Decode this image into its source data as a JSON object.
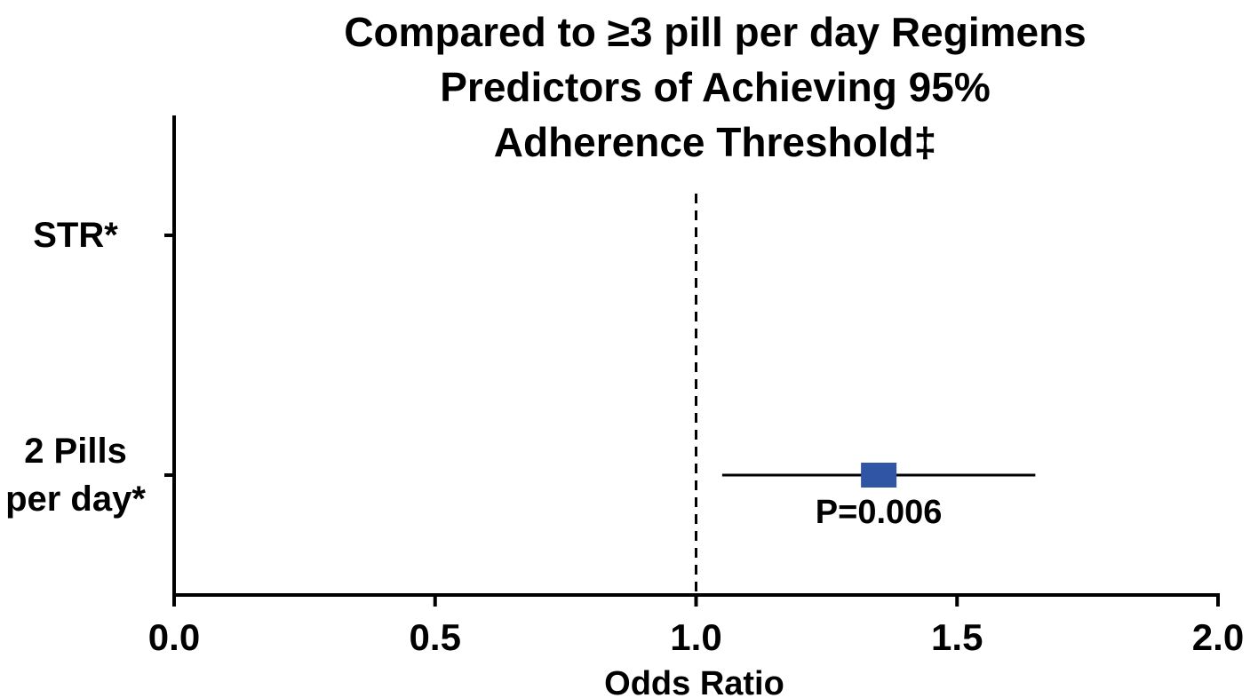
{
  "chart_data": {
    "type": "forest",
    "title": [
      "Compared to ≥3 pill per day Regimens",
      "Predictors of Achieving 95%",
      "Adherence Threshold‡"
    ],
    "categories": [
      "STR*",
      "2 Pills per day*"
    ],
    "values": [
      null,
      1.35
    ],
    "lower": [
      null,
      1.05
    ],
    "upper": [
      null,
      1.65
    ],
    "color": "#2f55a4",
    "annotation": "P=0.006",
    "reference_line": {
      "value": 1,
      "label": "1.0"
    },
    "xlabel": "Odds Ratio",
    "xlim": [
      0,
      2
    ],
    "xticks": [
      {
        "value": 0,
        "label": "0.0"
      },
      0.5,
      {
        "value": 1,
        "label": "1.0"
      },
      1.5,
      {
        "value": 2,
        "label": "2.0"
      }
    ]
  }
}
